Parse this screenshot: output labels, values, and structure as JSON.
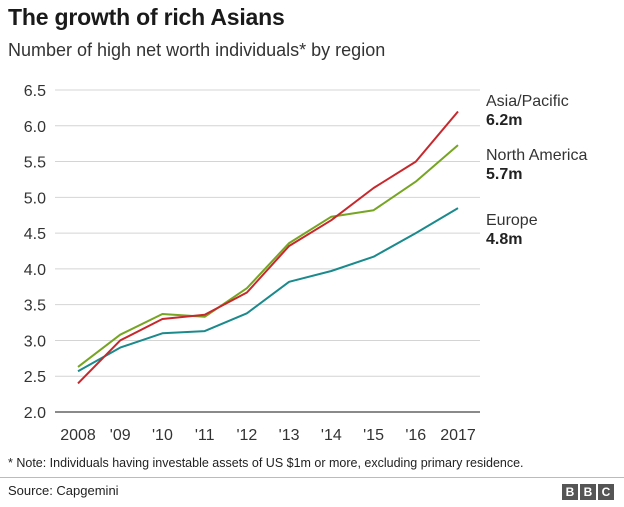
{
  "title": "The growth of rich Asians",
  "subtitle": "Number of high net worth individuals* by region",
  "note": "* Note: Individuals having investable assets of US $1m or more, excluding primary residence.",
  "source": "Source: Capgemini",
  "logo": [
    "B",
    "B",
    "C"
  ],
  "chart_data": {
    "type": "line",
    "x": [
      2008,
      2009,
      2010,
      2011,
      2012,
      2013,
      2014,
      2015,
      2016,
      2017
    ],
    "x_tick_labels": [
      "2008",
      "'09",
      "'10",
      "'11",
      "'12",
      "'13",
      "'14",
      "'15",
      "'16",
      "2017"
    ],
    "y_ticks": [
      2.0,
      2.5,
      3.0,
      3.5,
      4.0,
      4.5,
      5.0,
      5.5,
      6.0,
      6.5
    ],
    "y_tick_labels": [
      "2.0",
      "2.5",
      "3.0",
      "3.5",
      "4.0",
      "4.5",
      "5.0",
      "5.5",
      "6.0",
      "6.5"
    ],
    "ylim": [
      2.0,
      6.5
    ],
    "grid": "horizontal",
    "legend": "direct labels at right",
    "series": [
      {
        "name": "Asia/Pacific",
        "value_label": "6.2m",
        "color": "#c8282c",
        "values": [
          2.4,
          3.0,
          3.3,
          3.36,
          3.67,
          4.32,
          4.68,
          5.13,
          5.5,
          6.2
        ]
      },
      {
        "name": "North America",
        "value_label": "5.7m",
        "color": "#76a521",
        "values": [
          2.63,
          3.08,
          3.37,
          3.33,
          3.73,
          4.36,
          4.73,
          4.82,
          5.22,
          5.73
        ]
      },
      {
        "name": "Europe",
        "value_label": "4.8m",
        "color": "#1b8a8c",
        "values": [
          2.57,
          2.9,
          3.1,
          3.13,
          3.38,
          3.82,
          3.97,
          4.17,
          4.5,
          4.85
        ]
      }
    ]
  }
}
